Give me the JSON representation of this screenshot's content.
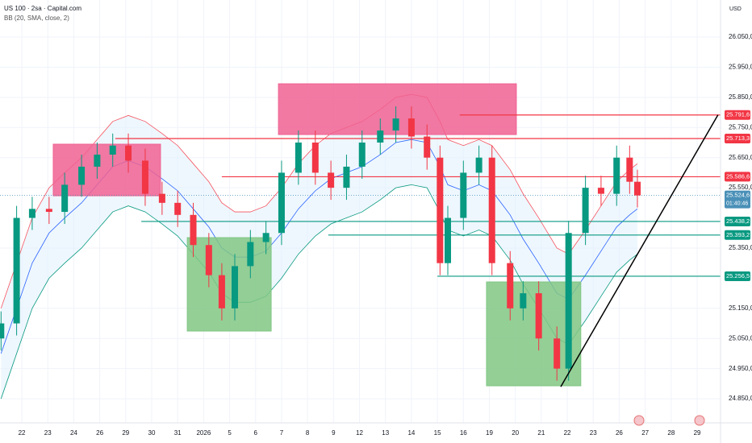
{
  "chart_data": {
    "type": "candlestick",
    "title": "US 100 · 2sa · Capital.com",
    "subtitle": "BB (20, SMA, close, 2)",
    "currency": "USD",
    "up_color": "#089981",
    "down_color": "#f23645",
    "grid": true,
    "xlim": [
      -0.84,
      26.9
    ],
    "ylim": [
      24770,
      26173
    ],
    "yticks": [
      {
        "value": 26050,
        "label": "26.050,0"
      },
      {
        "value": 25950,
        "label": "25.950,0"
      },
      {
        "value": 25850,
        "label": "25.850,0"
      },
      {
        "value": 25750,
        "label": "25.750,0"
      },
      {
        "value": 25650,
        "label": "25.650,0"
      },
      {
        "value": 25550,
        "label": "25.550,0"
      },
      {
        "value": 25350,
        "label": "25.350,0"
      },
      {
        "value": 25150,
        "label": "25.150,0"
      },
      {
        "value": 25050,
        "label": "25.050,0"
      },
      {
        "value": 24950,
        "label": "24.950,0"
      },
      {
        "value": 24850,
        "label": "24.850,0"
      }
    ],
    "xticks": [
      {
        "value": 0,
        "label": "22"
      },
      {
        "value": 1,
        "label": "23"
      },
      {
        "value": 2,
        "label": "24"
      },
      {
        "value": 3,
        "label": "26"
      },
      {
        "value": 4,
        "label": "29"
      },
      {
        "value": 5,
        "label": "30"
      },
      {
        "value": 6,
        "label": "31"
      },
      {
        "value": 7,
        "label": "2026"
      },
      {
        "value": 8,
        "label": "5"
      },
      {
        "value": 9,
        "label": "6"
      },
      {
        "value": 10,
        "label": "7"
      },
      {
        "value": 11,
        "label": "8"
      },
      {
        "value": 12,
        "label": "9"
      },
      {
        "value": 13,
        "label": "12"
      },
      {
        "value": 14,
        "label": "13"
      },
      {
        "value": 15,
        "label": "14"
      },
      {
        "value": 16,
        "label": "15"
      },
      {
        "value": 17,
        "label": "16"
      },
      {
        "value": 18,
        "label": "19"
      },
      {
        "value": 19,
        "label": "20"
      },
      {
        "value": 20,
        "label": "21"
      },
      {
        "value": 21,
        "label": "22"
      },
      {
        "value": 22,
        "label": "23"
      },
      {
        "value": 23,
        "label": "26"
      },
      {
        "value": 24,
        "label": "27"
      },
      {
        "value": 25,
        "label": "28"
      },
      {
        "value": 26,
        "label": "29"
      }
    ],
    "candles": {
      "t": [
        -0.8,
        -0.2,
        0.4,
        1.05,
        1.65,
        2.3,
        2.9,
        3.5,
        4.1,
        4.75,
        5.4,
        6.0,
        6.6,
        7.2,
        7.7,
        8.2,
        8.8,
        9.4,
        10.0,
        10.65,
        11.3,
        11.9,
        12.5,
        13.1,
        13.8,
        14.4,
        15.0,
        15.6,
        16.1,
        16.4,
        17.0,
        17.6,
        18.1,
        18.8,
        19.3,
        19.9,
        20.6,
        21.05,
        21.7,
        22.3,
        22.9,
        23.4,
        23.7
      ],
      "open": [
        25050,
        25100,
        25450,
        25480,
        25470,
        25560,
        25620,
        25660,
        25690,
        25640,
        25530,
        25500,
        25460,
        25360,
        25260,
        25150,
        25290,
        25370,
        25400,
        25600,
        25700,
        25600,
        25550,
        25620,
        25700,
        25740,
        25780,
        25720,
        25650,
        25300,
        25450,
        25600,
        25650,
        25300,
        25150,
        25200,
        25050,
        24950,
        25400,
        25550,
        25530,
        25650,
        25570
      ],
      "high": [
        25140,
        25490,
        25520,
        25520,
        25600,
        25660,
        25700,
        25730,
        25730,
        25680,
        25570,
        25540,
        25500,
        25400,
        25300,
        25330,
        25410,
        25440,
        25640,
        25740,
        25740,
        25640,
        25660,
        25740,
        25780,
        25820,
        25820,
        25760,
        25690,
        25490,
        25640,
        25690,
        25690,
        25340,
        25240,
        25240,
        25090,
        25440,
        25590,
        25590,
        25690,
        25690,
        25610
      ],
      "low": [
        25010,
        25060,
        25410,
        25430,
        25430,
        25520,
        25580,
        25620,
        25600,
        25490,
        25460,
        25420,
        25320,
        25220,
        25110,
        25110,
        25250,
        25330,
        25360,
        25560,
        25560,
        25510,
        25510,
        25580,
        25660,
        25700,
        25680,
        25610,
        25260,
        25260,
        25410,
        25560,
        25260,
        25110,
        25110,
        25010,
        24910,
        24910,
        25360,
        25490,
        25490,
        25530,
        25484.6
      ],
      "close": [
        25100,
        25450,
        25480,
        25470,
        25560,
        25620,
        25660,
        25690,
        25640,
        25530,
        25500,
        25460,
        25360,
        25260,
        25150,
        25290,
        25370,
        25400,
        25600,
        25700,
        25600,
        25550,
        25620,
        25700,
        25740,
        25780,
        25720,
        25650,
        25300,
        25450,
        25600,
        25650,
        25300,
        25150,
        25200,
        25050,
        24950,
        25400,
        25550,
        25530,
        25650,
        25570,
        25524.6
      ]
    },
    "bands": {
      "upper": [
        25150,
        25300,
        25450,
        25550,
        25600,
        25650,
        25710,
        25770,
        25790,
        25770,
        25730,
        25690,
        25630,
        25570,
        25500,
        25470,
        25470,
        25490,
        25550,
        25630,
        25690,
        25730,
        25750,
        25770,
        25810,
        25850,
        25860,
        25850,
        25770,
        25710,
        25690,
        25710,
        25690,
        25610,
        25530,
        25450,
        25350,
        25330,
        25410,
        25490,
        25570,
        25610,
        25630
      ],
      "middle": [
        25000,
        25150,
        25300,
        25400,
        25450,
        25500,
        25560,
        25620,
        25640,
        25620,
        25580,
        25540,
        25480,
        25420,
        25350,
        25320,
        25320,
        25340,
        25400,
        25480,
        25540,
        25580,
        25600,
        25620,
        25660,
        25700,
        25710,
        25700,
        25620,
        25560,
        25540,
        25560,
        25540,
        25460,
        25380,
        25300,
        25200,
        25180,
        25260,
        25340,
        25420,
        25460,
        25480
      ],
      "lower": [
        24850,
        25000,
        25150,
        25250,
        25300,
        25350,
        25410,
        25470,
        25490,
        25470,
        25430,
        25390,
        25330,
        25270,
        25200,
        25170,
        25170,
        25190,
        25250,
        25330,
        25390,
        25430,
        25450,
        25470,
        25510,
        25550,
        25560,
        25550,
        25470,
        25410,
        25390,
        25410,
        25390,
        25310,
        25230,
        25150,
        25050,
        25030,
        25110,
        25190,
        25270,
        25310,
        25330
      ],
      "line_color": "#f7525f",
      "middle_color": "#2962ff",
      "lower_color": "#089981",
      "fill": "#e3f2fd"
    },
    "zones": [
      {
        "start": 1.21,
        "end": 5.34,
        "top": 25694.6,
        "bottom": 25523.5,
        "color": "#f06292"
      },
      {
        "start": 9.88,
        "end": 19.04,
        "top": 25895,
        "bottom": 25726.6,
        "color": "#f06292"
      },
      {
        "start": 6.37,
        "end": 9.6,
        "top": 25384.6,
        "bottom": 25074.6,
        "color": "#81c784"
      },
      {
        "start": 17.89,
        "end": 21.52,
        "top": 25237.6,
        "bottom": 24893,
        "color": "#81c784"
      }
    ],
    "levels": [
      {
        "price": 25791.6,
        "label": "25.791,6",
        "start": 16.86,
        "color": "#f23645"
      },
      {
        "price": 25713.3,
        "label": "25.713,3",
        "start": 3.6,
        "color": "#f23645"
      },
      {
        "price": 25586.6,
        "label": "25.586,6",
        "start": 7.7,
        "color": "#f23645"
      },
      {
        "price": 25438.2,
        "label": "25.438,2",
        "start": 4.6,
        "color": "#089981"
      },
      {
        "price": 25393.2,
        "label": "25.393,2",
        "start": 11.8,
        "color": "#089981"
      },
      {
        "price": 25256.5,
        "label": "25.256,5",
        "start": 16.0,
        "color": "#089981"
      }
    ],
    "current_price": {
      "price": 25524.6,
      "label": "25.524,6",
      "countdown": "01:40:46",
      "color": "#4a90b8"
    },
    "trendline": {
      "t": [
        20.75,
        26.8
      ],
      "price": [
        24890,
        25791.6
      ],
      "color": "#000000"
    }
  }
}
